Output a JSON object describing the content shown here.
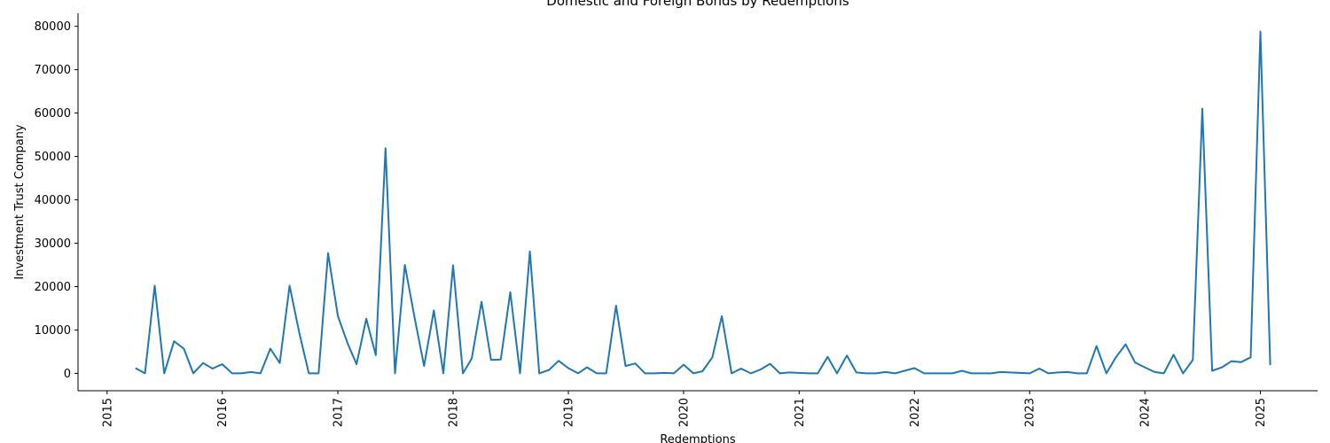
{
  "chart_data": {
    "type": "line",
    "title": "Domestic and Foreign Bonds by Redemptions",
    "xlabel": "Redemptions",
    "ylabel": "Investment Trust Company",
    "xlim": [
      "2014-10-01",
      "2025-07-01"
    ],
    "ylim": [
      -4000,
      83000
    ],
    "x_tick_labels": [
      "2015",
      "2016",
      "2017",
      "2018",
      "2019",
      "2020",
      "2021",
      "2022",
      "2023",
      "2024",
      "2025"
    ],
    "y_tick_labels": [
      "0",
      "10000",
      "20000",
      "30000",
      "40000",
      "50000",
      "60000",
      "70000",
      "80000"
    ],
    "grid": false,
    "line_color": "#1f77b4",
    "series": [
      {
        "x": [
          "2015-04-01",
          "2015-05-01",
          "2015-06-01",
          "2015-07-01",
          "2015-08-01",
          "2015-09-01",
          "2015-10-01",
          "2015-11-01",
          "2015-12-01",
          "2016-01-01",
          "2016-02-01",
          "2016-03-01",
          "2016-04-01",
          "2016-05-01",
          "2016-06-01",
          "2016-07-01",
          "2016-08-01",
          "2016-09-01",
          "2016-10-01",
          "2016-11-01",
          "2016-12-01",
          "2017-01-01",
          "2017-02-01",
          "2017-03-01",
          "2017-04-01",
          "2017-05-01",
          "2017-06-01",
          "2017-07-01",
          "2017-08-01",
          "2017-09-01",
          "2017-10-01",
          "2017-11-01",
          "2017-12-01",
          "2018-01-01",
          "2018-02-01",
          "2018-03-01",
          "2018-04-01",
          "2018-05-01",
          "2018-06-01",
          "2018-07-01",
          "2018-08-01",
          "2018-09-01",
          "2018-10-01",
          "2018-11-01",
          "2018-12-01",
          "2019-01-01",
          "2019-02-01",
          "2019-03-01",
          "2019-04-01",
          "2019-05-01",
          "2019-06-01",
          "2019-07-01",
          "2019-08-01",
          "2019-09-01",
          "2019-10-01",
          "2019-11-01",
          "2019-12-01",
          "2020-01-01",
          "2020-02-01",
          "2020-03-01",
          "2020-04-01",
          "2020-05-01",
          "2020-06-01",
          "2020-07-01",
          "2020-08-01",
          "2020-09-01",
          "2020-10-01",
          "2020-11-01",
          "2020-12-01",
          "2021-01-01",
          "2021-02-01",
          "2021-03-01",
          "2021-04-01",
          "2021-05-01",
          "2021-06-01",
          "2021-07-01",
          "2021-08-01",
          "2021-09-01",
          "2021-10-01",
          "2021-11-01",
          "2021-12-01",
          "2022-01-01",
          "2022-02-01",
          "2022-03-01",
          "2022-04-01",
          "2022-05-01",
          "2022-06-01",
          "2022-07-01",
          "2022-08-01",
          "2022-09-01",
          "2022-10-01",
          "2022-11-01",
          "2022-12-01",
          "2023-01-01",
          "2023-02-01",
          "2023-03-01",
          "2023-04-01",
          "2023-05-01",
          "2023-06-01",
          "2023-07-01",
          "2023-08-01",
          "2023-09-01",
          "2023-10-01",
          "2023-11-01",
          "2023-12-01",
          "2024-01-01",
          "2024-02-01",
          "2024-03-01",
          "2024-04-01",
          "2024-05-01",
          "2024-06-01",
          "2024-07-01",
          "2024-08-01",
          "2024-09-01",
          "2024-10-01",
          "2024-11-01",
          "2024-12-01",
          "2025-01-01",
          "2025-02-01"
        ],
        "y": [
          1200,
          0,
          20200,
          0,
          7400,
          5700,
          0,
          2400,
          1100,
          2100,
          0,
          0,
          300,
          0,
          5700,
          2400,
          20200,
          9300,
          0,
          0,
          27700,
          13200,
          6900,
          2100,
          12600,
          4200,
          51900,
          0,
          25000,
          12800,
          1700,
          14500,
          0,
          24900,
          0,
          3400,
          16500,
          3100,
          3200,
          18700,
          0,
          28100,
          0,
          800,
          2900,
          1200,
          0,
          1400,
          0,
          0,
          15600,
          1700,
          2300,
          0,
          0,
          100,
          0,
          2000,
          0,
          500,
          3700,
          13200,
          0,
          1100,
          0,
          900,
          2200,
          0,
          200,
          100,
          0,
          0,
          3800,
          0,
          4100,
          200,
          0,
          0,
          300,
          0,
          600,
          1200,
          0,
          0,
          0,
          0,
          600,
          0,
          0,
          0,
          300,
          200,
          100,
          0,
          1100,
          0,
          200,
          300,
          0,
          0,
          6300,
          0,
          3700,
          6700,
          2500,
          1400,
          300,
          0,
          4300,
          0,
          3100,
          61000,
          600,
          1400,
          2800,
          2600,
          3700,
          78800,
          1900
        ]
      }
    ]
  }
}
